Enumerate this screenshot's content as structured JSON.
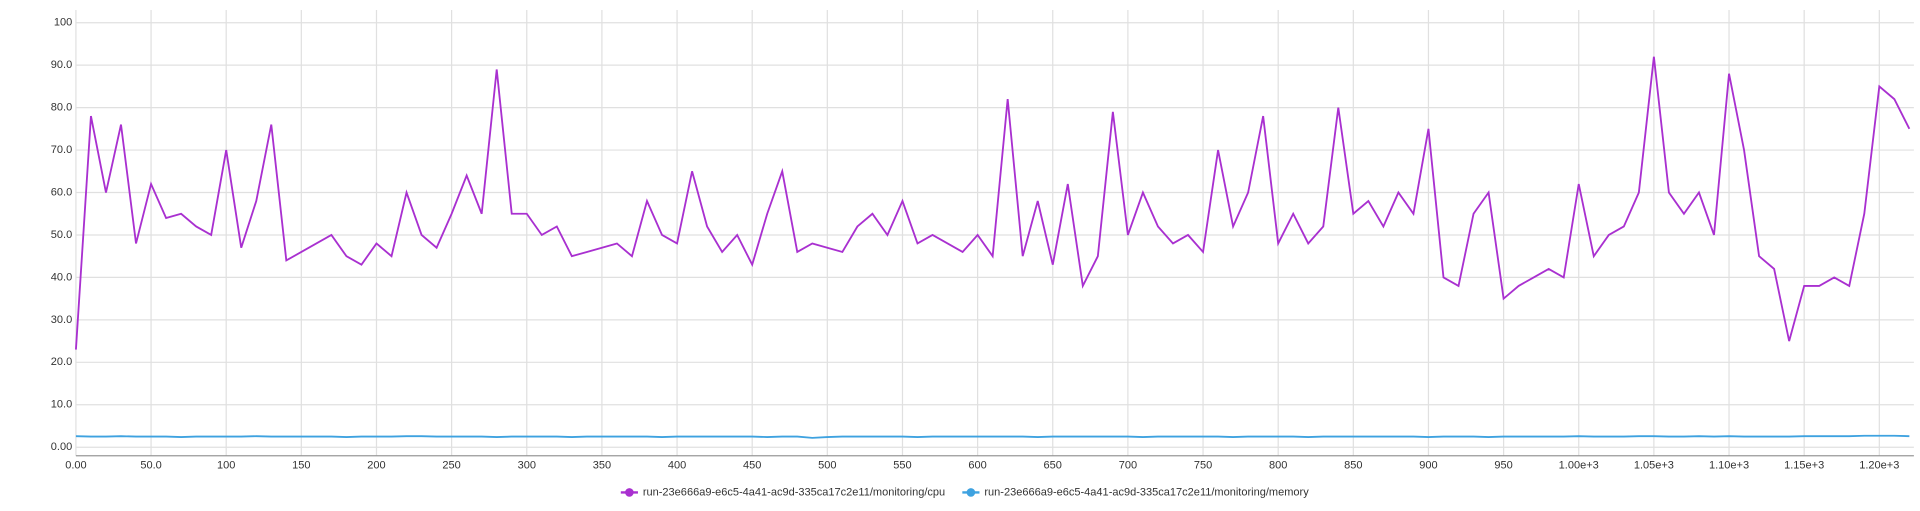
{
  "chart_data": {
    "type": "line",
    "x": [
      0,
      10,
      20,
      30,
      40,
      50,
      60,
      70,
      80,
      90,
      100,
      110,
      120,
      130,
      140,
      150,
      160,
      170,
      180,
      190,
      200,
      210,
      220,
      230,
      240,
      250,
      260,
      270,
      280,
      290,
      300,
      310,
      320,
      330,
      340,
      350,
      360,
      370,
      380,
      390,
      400,
      410,
      420,
      430,
      440,
      450,
      460,
      470,
      480,
      490,
      500,
      510,
      520,
      530,
      540,
      550,
      560,
      570,
      580,
      590,
      600,
      610,
      620,
      630,
      640,
      650,
      660,
      670,
      680,
      690,
      700,
      710,
      720,
      730,
      740,
      750,
      760,
      770,
      780,
      790,
      800,
      810,
      820,
      830,
      840,
      850,
      860,
      870,
      880,
      890,
      900,
      910,
      920,
      930,
      940,
      950,
      960,
      970,
      980,
      990,
      1000,
      1010,
      1020,
      1030,
      1040,
      1050,
      1060,
      1070,
      1080,
      1090,
      1100,
      1110,
      1120,
      1130,
      1140,
      1150,
      1160,
      1170,
      1180,
      1190,
      1200,
      1210,
      1220
    ],
    "series": [
      {
        "name": "run-23e666a9-e6c5-4a41-ac9d-335ca17c2e11/monitoring/cpu",
        "color": "#a930d0",
        "values": [
          23,
          78,
          60,
          76,
          48,
          62,
          54,
          55,
          52,
          50,
          70,
          47,
          58,
          76,
          44,
          46,
          48,
          50,
          45,
          43,
          48,
          45,
          60,
          50,
          47,
          55,
          64,
          55,
          89,
          55,
          55,
          50,
          52,
          45,
          46,
          47,
          48,
          45,
          58,
          50,
          48,
          65,
          52,
          46,
          50,
          43,
          55,
          65,
          46,
          48,
          47,
          46,
          52,
          55,
          50,
          58,
          48,
          50,
          48,
          46,
          50,
          45,
          82,
          45,
          58,
          43,
          62,
          38,
          45,
          79,
          50,
          60,
          52,
          48,
          50,
          46,
          70,
          52,
          60,
          78,
          48,
          55,
          48,
          52,
          80,
          55,
          58,
          52,
          60,
          55,
          75,
          40,
          38,
          55,
          60,
          35,
          38,
          40,
          42,
          40,
          62,
          45,
          50,
          52,
          60,
          92,
          60,
          55,
          60,
          50,
          88,
          70,
          45,
          42,
          25,
          38,
          38,
          40,
          38,
          55,
          85,
          82,
          75
        ]
      },
      {
        "name": "run-23e666a9-e6c5-4a41-ac9d-335ca17c2e11/monitoring/memory",
        "color": "#3ea2e0",
        "values": [
          2.6,
          2.5,
          2.5,
          2.6,
          2.5,
          2.5,
          2.5,
          2.4,
          2.5,
          2.5,
          2.5,
          2.5,
          2.6,
          2.5,
          2.5,
          2.5,
          2.5,
          2.5,
          2.4,
          2.5,
          2.5,
          2.5,
          2.6,
          2.6,
          2.5,
          2.5,
          2.5,
          2.5,
          2.4,
          2.5,
          2.5,
          2.5,
          2.5,
          2.4,
          2.5,
          2.5,
          2.5,
          2.5,
          2.5,
          2.4,
          2.5,
          2.5,
          2.5,
          2.5,
          2.5,
          2.5,
          2.4,
          2.5,
          2.5,
          2.2,
          2.4,
          2.5,
          2.5,
          2.5,
          2.5,
          2.5,
          2.4,
          2.5,
          2.5,
          2.5,
          2.5,
          2.5,
          2.5,
          2.5,
          2.4,
          2.5,
          2.5,
          2.5,
          2.5,
          2.5,
          2.5,
          2.4,
          2.5,
          2.5,
          2.5,
          2.5,
          2.5,
          2.4,
          2.5,
          2.5,
          2.5,
          2.5,
          2.4,
          2.5,
          2.5,
          2.5,
          2.5,
          2.5,
          2.5,
          2.5,
          2.4,
          2.5,
          2.5,
          2.5,
          2.4,
          2.5,
          2.5,
          2.5,
          2.5,
          2.5,
          2.6,
          2.5,
          2.5,
          2.5,
          2.6,
          2.6,
          2.5,
          2.5,
          2.6,
          2.5,
          2.6,
          2.5,
          2.5,
          2.5,
          2.5,
          2.6,
          2.6,
          2.6,
          2.6,
          2.7,
          2.7,
          2.7,
          2.6
        ]
      }
    ],
    "xlim": [
      0,
      1223
    ],
    "ylim": [
      -2,
      103
    ],
    "xticks": [
      {
        "value": 0,
        "label": "0.00"
      },
      {
        "value": 50,
        "label": "50.0"
      },
      100,
      150,
      200,
      250,
      300,
      350,
      400,
      450,
      500,
      550,
      600,
      650,
      700,
      750,
      800,
      850,
      900,
      950,
      {
        "value": 1000,
        "label": "1.00e+3"
      },
      {
        "value": 1050,
        "label": "1.05e+3"
      },
      {
        "value": 1100,
        "label": "1.10e+3"
      },
      {
        "value": 1150,
        "label": "1.15e+3"
      },
      {
        "value": 1200,
        "label": "1.20e+3"
      }
    ],
    "yticks": [
      {
        "value": 0,
        "label": "0.00"
      },
      {
        "value": 10,
        "label": "10.0"
      },
      {
        "value": 20,
        "label": "20.0"
      },
      {
        "value": 30,
        "label": "30.0"
      },
      {
        "value": 40,
        "label": "40.0"
      },
      {
        "value": 50,
        "label": "50.0"
      },
      {
        "value": 60,
        "label": "60.0"
      },
      {
        "value": 70,
        "label": "70.0"
      },
      {
        "value": 80,
        "label": "80.0"
      },
      {
        "value": 90,
        "label": "90.0"
      },
      {
        "value": 100,
        "label": "100"
      }
    ],
    "grid": true,
    "legend": "bottom"
  }
}
